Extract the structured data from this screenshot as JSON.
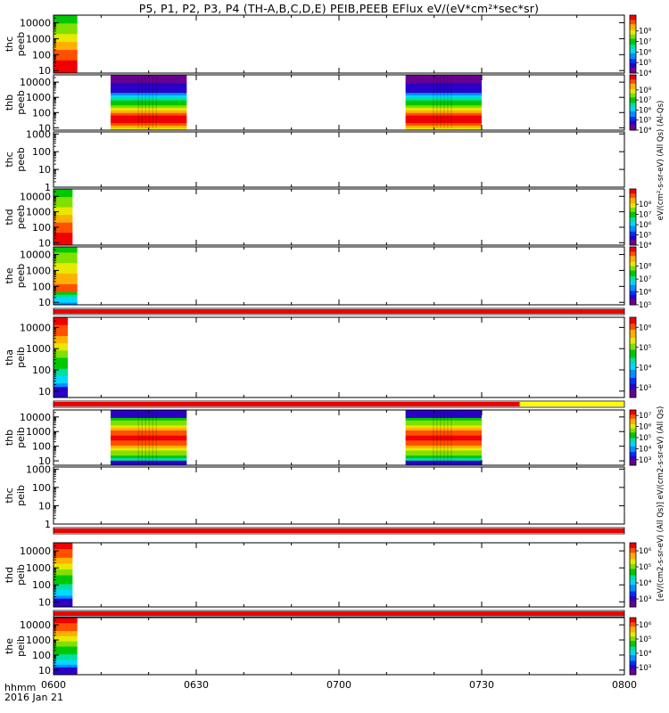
{
  "header": {
    "title": "P5, P1, P2, P3, P4 (TH-A,B,C,D,E) PEIB,PEEB EFlux eV/(eV*cm²*sec*sr)"
  },
  "footer": {
    "time_label": "hhmm",
    "date_label": "2016 Jan 21"
  },
  "colorbar_texts": {
    "peeb": "eV/(cm²-s-sr-eV) (All Qs) (Al-Qs)",
    "peib": "[eV/(cm2-s-sr-eV) (All Qs)] eV/(cm2-s-sr-eV) (All Qs)"
  },
  "colors": {
    "spectrum": [
      "#6a0090",
      "#2a00c8",
      "#0030ff",
      "#0090ff",
      "#00d8ff",
      "#00e0a0",
      "#00c800",
      "#80e000",
      "#e8e800",
      "#ffb000",
      "#ff5000",
      "#f00000"
    ],
    "status_red": "#ee0000",
    "status_yellow": "#ffff00"
  },
  "chart_data": {
    "type": "heatmap",
    "x_label": "hhmm",
    "x_ticks": [
      "0600",
      "0630",
      "0700",
      "0730",
      "0800"
    ],
    "x_range_minutes": [
      0,
      120
    ],
    "panels": [
      {
        "probe": "thc",
        "product": "peeb",
        "yticks": [
          "10",
          "100",
          "1000",
          "10000"
        ],
        "ylim": [
          7,
          30000
        ],
        "cbar": [
          "10⁴",
          "10⁵",
          "10⁶",
          "10⁷",
          "10⁸"
        ],
        "cbar_range": [
          3,
          8.5
        ],
        "blocks": [
          [
            0,
            5
          ]
        ],
        "profile": "electron"
      },
      {
        "probe": "thb",
        "product": "peeb",
        "yticks": [
          "10",
          "100",
          "1000",
          "10000"
        ],
        "ylim": [
          7,
          30000
        ],
        "cbar": [
          "10⁴",
          "10⁵",
          "10⁶",
          "10⁷",
          "10⁸"
        ],
        "cbar_range": [
          3,
          8.5
        ],
        "blocks": [
          [
            12,
            28
          ],
          [
            74,
            90
          ]
        ],
        "profile": "electron_wide"
      },
      {
        "probe": "thc",
        "product": "peeb",
        "yticks": [
          "1",
          "10",
          "100",
          "1000"
        ],
        "ylim": [
          1,
          1300
        ],
        "cbar": [],
        "cbar_range": [],
        "blocks": [],
        "profile": "empty"
      },
      {
        "probe": "thd",
        "product": "peeb",
        "yticks": [
          "10",
          "100",
          "1000",
          "10000"
        ],
        "ylim": [
          7,
          30000
        ],
        "cbar": [
          "10⁴",
          "10⁵",
          "10⁶",
          "10⁷",
          "10⁸"
        ],
        "cbar_range": [
          3,
          8.5
        ],
        "blocks": [
          [
            0,
            4
          ]
        ],
        "profile": "electron"
      },
      {
        "probe": "the",
        "product": "peeb",
        "yticks": [
          "10",
          "100",
          "1000",
          "10000"
        ],
        "ylim": [
          7,
          30000
        ],
        "cbar": [
          "10⁵",
          "10⁶",
          "10⁷",
          "10⁸"
        ],
        "cbar_range": [
          4,
          8.5
        ],
        "blocks": [
          [
            0,
            5
          ]
        ],
        "profile": "electron_low"
      },
      {
        "probe": "tha",
        "product": "peib",
        "yticks": [
          "10",
          "100",
          "1000",
          "10000"
        ],
        "ylim": [
          5,
          30000
        ],
        "cbar": [
          "10³",
          "10⁴",
          "10⁵",
          "10⁶"
        ],
        "cbar_range": [
          2.5,
          6.5
        ],
        "blocks": [
          [
            0,
            3
          ]
        ],
        "profile": "ion"
      },
      {
        "probe": "thb",
        "product": "peib",
        "yticks": [
          "10",
          "100",
          "1000",
          "10000"
        ],
        "ylim": [
          5,
          30000
        ],
        "cbar": [
          "10³",
          "10⁴",
          "10⁵",
          "10⁶",
          "10⁷"
        ],
        "cbar_range": [
          2.5,
          7.5
        ],
        "blocks": [
          [
            12,
            28
          ],
          [
            74,
            90
          ]
        ],
        "profile": "ion_wide"
      },
      {
        "probe": "thc",
        "product": "peib",
        "yticks": [
          "1",
          "10",
          "100",
          "1000"
        ],
        "ylim": [
          1,
          1300
        ],
        "cbar": [],
        "cbar_range": [],
        "blocks": [],
        "profile": "empty"
      },
      {
        "probe": "thd",
        "product": "peib",
        "yticks": [
          "10",
          "100",
          "1000",
          "10000"
        ],
        "ylim": [
          5,
          30000
        ],
        "cbar": [
          "10³",
          "10⁴",
          "10⁵",
          "10⁶"
        ],
        "cbar_range": [
          2.5,
          6.5
        ],
        "blocks": [
          [
            0,
            4
          ]
        ],
        "profile": "ion"
      },
      {
        "probe": "the",
        "product": "peib",
        "yticks": [
          "10",
          "100",
          "1000",
          "10000"
        ],
        "ylim": [
          5,
          30000
        ],
        "cbar": [
          "10³",
          "10⁴",
          "10⁵",
          "10⁶"
        ],
        "cbar_range": [
          2.5,
          6.5
        ],
        "blocks": [
          [
            0,
            5
          ]
        ],
        "profile": "ion"
      }
    ],
    "status_bars": [
      {
        "after_panel": 4,
        "segments": [
          {
            "from": 0,
            "to": 120,
            "color": "red"
          }
        ]
      },
      {
        "after_panel": 5,
        "segments": [
          {
            "from": 0,
            "to": 98,
            "color": "red"
          },
          {
            "from": 98,
            "to": 120,
            "color": "yellow"
          }
        ]
      },
      {
        "after_panel": 7,
        "segments": [
          {
            "from": 0,
            "to": 120,
            "color": "red"
          }
        ]
      },
      {
        "after_panel": 8,
        "segments": [
          {
            "from": 0,
            "to": 120,
            "color": "red"
          }
        ]
      }
    ]
  }
}
